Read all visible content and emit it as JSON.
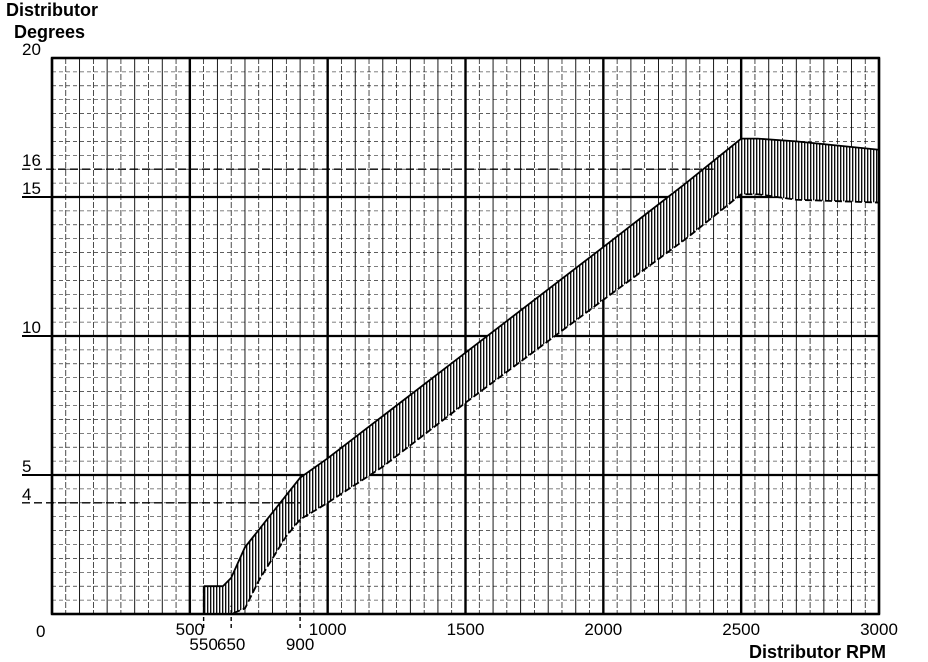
{
  "chart_data": {
    "type": "area",
    "title": "",
    "ylabel_line1": "Distributor",
    "ylabel_line2": "Degrees",
    "xlabel": "Distributor RPM",
    "xlim": [
      0,
      3000
    ],
    "ylim": [
      0,
      20
    ],
    "grid": true,
    "yticks": [
      {
        "value": 0,
        "label": "0"
      },
      {
        "value": 4,
        "label": "4"
      },
      {
        "value": 5,
        "label": "5"
      },
      {
        "value": 10,
        "label": "10"
      },
      {
        "value": 15,
        "label": "15"
      },
      {
        "value": 16,
        "label": "16"
      },
      {
        "value": 20,
        "label": "20"
      }
    ],
    "xticks_major": [
      {
        "value": 500,
        "label": "500"
      },
      {
        "value": 1000,
        "label": "1000"
      },
      {
        "value": 1500,
        "label": "1500"
      },
      {
        "value": 2000,
        "label": "2000"
      },
      {
        "value": 2500,
        "label": "2500"
      },
      {
        "value": 3000,
        "label": "3000"
      }
    ],
    "xticks_minor": [
      {
        "value": 550,
        "label": "550"
      },
      {
        "value": 650,
        "label": "650"
      },
      {
        "value": 900,
        "label": "900"
      }
    ],
    "series": [
      {
        "x": [
          550,
          560,
          620,
          650,
          700,
          780,
          900,
          1000,
          1500,
          2000,
          2300,
          2500,
          2560,
          2700,
          3000
        ],
        "y": [
          1.0,
          1.0,
          1.0,
          1.3,
          2.4,
          3.4,
          4.9,
          5.6,
          9.4,
          13.2,
          15.5,
          17.1,
          17.1,
          17.0,
          16.7
        ]
      },
      {
        "x": [
          550,
          560,
          600,
          650,
          700,
          750,
          800,
          850,
          900,
          1000,
          1200,
          1500,
          2000,
          2300,
          2500,
          2560,
          2700,
          3000
        ],
        "y": [
          0,
          0,
          0,
          0,
          0.2,
          1.2,
          2.0,
          2.8,
          3.4,
          4.0,
          5.3,
          7.6,
          11.3,
          13.5,
          15.1,
          15.1,
          14.9,
          14.8
        ]
      }
    ],
    "reference_lines": [
      {
        "axis": "y",
        "value": 16,
        "to_x": 2400
      },
      {
        "axis": "y",
        "value": 4,
        "to_x": 900
      },
      {
        "axis": "x",
        "value": 550,
        "to_y": 1
      },
      {
        "axis": "x",
        "value": 650,
        "to_y": 0.3
      },
      {
        "axis": "x",
        "value": 900,
        "to_y": 3.4
      }
    ]
  }
}
